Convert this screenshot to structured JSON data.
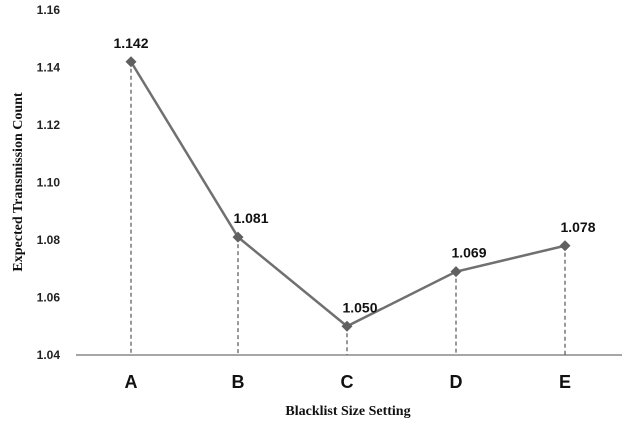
{
  "chart_data": {
    "type": "line",
    "title": "",
    "xlabel": "Blacklist Size Setting",
    "ylabel": "Expected Transmission Count",
    "categories": [
      "A",
      "B",
      "C",
      "D",
      "E"
    ],
    "series": [
      {
        "values": [
          1.142,
          1.081,
          1.05,
          1.069,
          1.078
        ],
        "labels": [
          "1.142",
          "1.081",
          "1.050",
          "1.069",
          "1.078"
        ]
      }
    ],
    "yticks": [
      "1.04",
      "1.06",
      "1.08",
      "1.10",
      "1.12",
      "1.14",
      "1.16"
    ],
    "ylim": [
      1.04,
      1.16
    ],
    "grid": false,
    "drop_lines": true,
    "colors": {
      "line": "#707070",
      "marker": "#606060",
      "axis": "#888888",
      "drop_line": "#333333"
    }
  }
}
